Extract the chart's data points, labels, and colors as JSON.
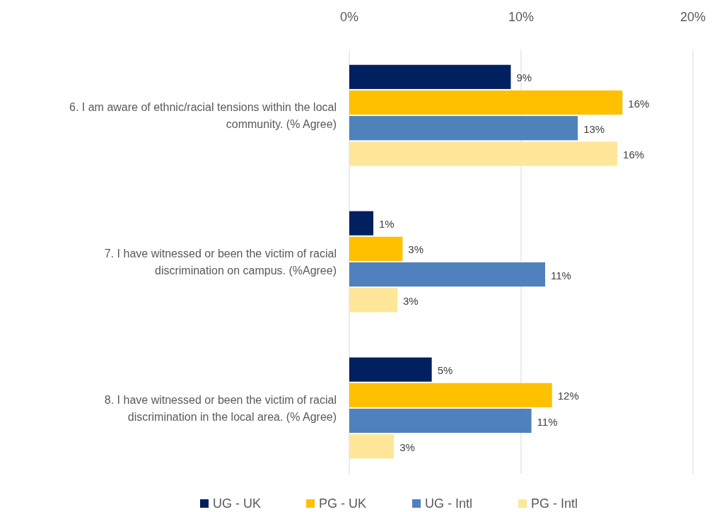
{
  "chart_data": {
    "type": "bar",
    "orientation": "horizontal",
    "categories": [
      "6. I am aware of ethnic/racial tensions within the local community. (% Agree)",
      "7. I have witnessed or been the victim of racial discrimination on campus. (%Agree)",
      "8. I have witnessed or been the victim of racial discrimination in the local area. (% Agree)"
    ],
    "series": [
      {
        "name": "UG - UK",
        "color": "#002060",
        "values": [
          9.4,
          1.4,
          4.8
        ],
        "value_labels": [
          "9%",
          "1%",
          "5%"
        ]
      },
      {
        "name": "PG - UK",
        "color": "#ffc000",
        "values": [
          15.9,
          3.1,
          11.8
        ],
        "value_labels": [
          "16%",
          "3%",
          "12%"
        ]
      },
      {
        "name": "UG - Intl",
        "color": "#4f81bd",
        "values": [
          13.3,
          11.4,
          10.6
        ],
        "value_labels": [
          "13%",
          "11%",
          "11%"
        ]
      },
      {
        "name": "PG - Intl",
        "color": "#ffe699",
        "values": [
          15.6,
          2.8,
          2.6
        ],
        "value_labels": [
          "16%",
          "3%",
          "3%"
        ]
      }
    ],
    "xlim": [
      0,
      20
    ],
    "xticks": [
      {
        "value": 0,
        "label": "0%"
      },
      {
        "value": 10,
        "label": "10%"
      },
      {
        "value": 20,
        "label": "20%"
      }
    ],
    "grid": "x",
    "legend": "bottom"
  }
}
